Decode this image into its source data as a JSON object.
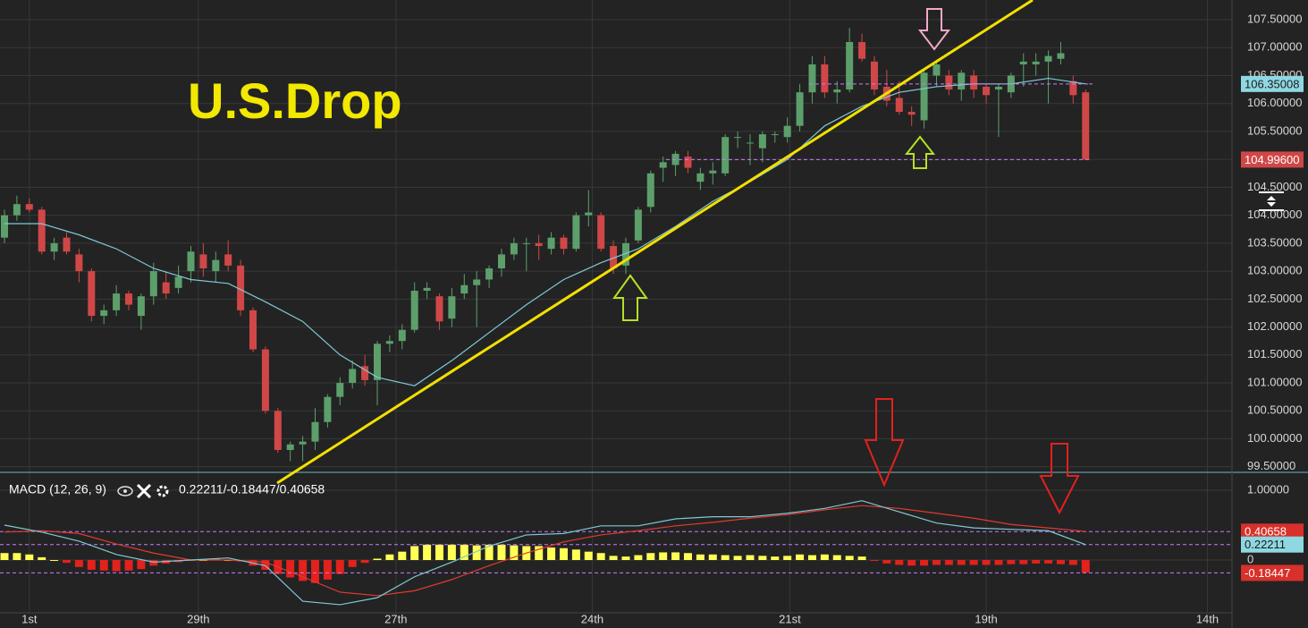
{
  "chart_data": {
    "type": "candlestick",
    "title": "U.S.Drop",
    "grid": true,
    "xlim": [
      -0.36,
      98.78
    ],
    "xticks": [
      {
        "value": 2,
        "label": "1st"
      },
      {
        "value": 15.6,
        "label": "29th"
      },
      {
        "value": 31.5,
        "label": "27th"
      },
      {
        "value": 47.3,
        "label": "24th"
      },
      {
        "value": 63.2,
        "label": "21st"
      },
      {
        "value": 79,
        "label": "19th"
      },
      {
        "value": 96.8,
        "label": "14th"
      }
    ],
    "price": {
      "ylim": [
        99.4,
        107.852
      ],
      "yticks": [
        {
          "value": 99.5,
          "label": "99.50000"
        },
        {
          "value": 100,
          "label": "100.00000"
        },
        {
          "value": 100.5,
          "label": "100.50000"
        },
        {
          "value": 101,
          "label": "101.00000"
        },
        {
          "value": 101.5,
          "label": "101.50000"
        },
        {
          "value": 102,
          "label": "102.00000"
        },
        {
          "value": 102.5,
          "label": "102.50000"
        },
        {
          "value": 103,
          "label": "103.00000"
        },
        {
          "value": 103.5,
          "label": "103.50000"
        },
        {
          "value": 104,
          "label": "104.00000"
        },
        {
          "value": 104.5,
          "label": "104.50000"
        },
        {
          "value": 105,
          "label": "105.00000"
        },
        {
          "value": 105.5,
          "label": "105.50000"
        },
        {
          "value": 106,
          "label": "106.00000"
        },
        {
          "value": 106.5,
          "label": "106.50000"
        },
        {
          "value": 107,
          "label": "107.00000"
        },
        {
          "value": 107.5,
          "label": "107.50000"
        }
      ],
      "up_color": "#5c9f6b",
      "down_color": "#d04747",
      "ohlc": [
        [
          103.6,
          104.1,
          103.5,
          104.0
        ],
        [
          104.0,
          104.35,
          103.9,
          104.2
        ],
        [
          104.2,
          104.3,
          104.05,
          104.1
        ],
        [
          104.1,
          104.15,
          103.3,
          103.35
        ],
        [
          103.35,
          103.6,
          103.2,
          103.5
        ],
        [
          103.6,
          103.7,
          103.3,
          103.35
        ],
        [
          103.3,
          103.4,
          102.8,
          103.0
        ],
        [
          103.0,
          103.05,
          102.1,
          102.2
        ],
        [
          102.2,
          102.4,
          102.05,
          102.3
        ],
        [
          102.3,
          102.75,
          102.2,
          102.6
        ],
        [
          102.6,
          102.65,
          102.3,
          102.4
        ],
        [
          102.2,
          102.6,
          101.95,
          102.55
        ],
        [
          102.55,
          103.15,
          102.4,
          103.0
        ],
        [
          102.8,
          103.0,
          102.5,
          102.6
        ],
        [
          102.7,
          103.1,
          102.6,
          102.9
        ],
        [
          103.0,
          103.45,
          102.8,
          103.35
        ],
        [
          103.3,
          103.5,
          102.9,
          103.05
        ],
        [
          103.0,
          103.35,
          102.8,
          103.2
        ],
        [
          103.3,
          103.55,
          103.0,
          103.1
        ],
        [
          103.1,
          103.2,
          102.2,
          102.3
        ],
        [
          102.3,
          102.35,
          101.55,
          101.6
        ],
        [
          101.6,
          101.65,
          100.45,
          100.5
        ],
        [
          100.5,
          100.55,
          99.75,
          99.8
        ],
        [
          99.8,
          99.95,
          99.6,
          99.9
        ],
        [
          99.9,
          100.05,
          99.6,
          99.95
        ],
        [
          99.95,
          100.55,
          99.8,
          100.3
        ],
        [
          100.3,
          100.8,
          100.2,
          100.75
        ],
        [
          100.75,
          101.1,
          100.6,
          101.0
        ],
        [
          101.0,
          101.4,
          100.9,
          101.25
        ],
        [
          101.3,
          101.5,
          100.95,
          101.05
        ],
        [
          101.05,
          101.75,
          100.6,
          101.7
        ],
        [
          101.7,
          101.85,
          101.55,
          101.75
        ],
        [
          101.75,
          102.05,
          101.6,
          101.95
        ],
        [
          101.95,
          102.8,
          101.9,
          102.65
        ],
        [
          102.65,
          102.8,
          102.5,
          102.7
        ],
        [
          102.55,
          102.6,
          101.95,
          102.1
        ],
        [
          102.15,
          102.7,
          102.0,
          102.55
        ],
        [
          102.6,
          102.95,
          102.5,
          102.75
        ],
        [
          102.75,
          103.0,
          102.0,
          102.85
        ],
        [
          102.85,
          103.1,
          102.7,
          103.05
        ],
        [
          103.05,
          103.4,
          102.9,
          103.3
        ],
        [
          103.3,
          103.6,
          103.2,
          103.5
        ],
        [
          103.5,
          103.6,
          103.0,
          103.5
        ],
        [
          103.5,
          103.65,
          103.2,
          103.45
        ],
        [
          103.4,
          103.7,
          103.3,
          103.6
        ],
        [
          103.6,
          103.65,
          103.3,
          103.4
        ],
        [
          103.4,
          104.05,
          103.35,
          104.0
        ],
        [
          104.0,
          104.45,
          103.8,
          104.05
        ],
        [
          104.0,
          104.05,
          103.35,
          103.4
        ],
        [
          103.45,
          103.55,
          102.95,
          103.05
        ],
        [
          103.1,
          103.6,
          102.95,
          103.5
        ],
        [
          103.55,
          104.15,
          103.5,
          104.1
        ],
        [
          104.15,
          104.8,
          104.05,
          104.75
        ],
        [
          104.85,
          105.05,
          104.6,
          104.95
        ],
        [
          104.9,
          105.15,
          104.7,
          105.1
        ],
        [
          105.05,
          105.15,
          104.75,
          104.85
        ],
        [
          104.6,
          104.85,
          104.45,
          104.75
        ],
        [
          104.75,
          104.95,
          104.55,
          104.8
        ],
        [
          104.75,
          105.45,
          104.7,
          105.4
        ],
        [
          105.4,
          105.5,
          105.2,
          105.4
        ],
        [
          105.3,
          105.45,
          104.9,
          105.3
        ],
        [
          105.2,
          105.5,
          104.95,
          105.45
        ],
        [
          105.45,
          105.5,
          105.3,
          105.45
        ],
        [
          105.4,
          105.75,
          105.3,
          105.6
        ],
        [
          105.6,
          106.35,
          105.5,
          106.2
        ],
        [
          106.2,
          106.85,
          106.0,
          106.7
        ],
        [
          106.7,
          106.85,
          106.1,
          106.2
        ],
        [
          106.2,
          106.4,
          106.0,
          106.25
        ],
        [
          106.25,
          107.35,
          106.2,
          107.1
        ],
        [
          107.1,
          107.25,
          106.75,
          106.8
        ],
        [
          106.75,
          106.85,
          106.15,
          106.25
        ],
        [
          106.3,
          106.6,
          105.95,
          106.05
        ],
        [
          106.1,
          106.4,
          105.8,
          105.85
        ],
        [
          105.85,
          105.95,
          105.6,
          105.8
        ],
        [
          105.7,
          106.6,
          105.55,
          106.55
        ],
        [
          106.5,
          106.75,
          106.3,
          106.7
        ],
        [
          106.5,
          106.6,
          106.15,
          106.25
        ],
        [
          106.25,
          106.6,
          106.05,
          106.55
        ],
        [
          106.5,
          106.6,
          106.1,
          106.25
        ],
        [
          106.3,
          106.35,
          106.0,
          106.15
        ],
        [
          106.25,
          106.35,
          105.4,
          106.3
        ],
        [
          106.2,
          106.55,
          106.1,
          106.5
        ],
        [
          106.7,
          106.9,
          106.3,
          106.75
        ],
        [
          106.7,
          106.9,
          106.5,
          106.75
        ],
        [
          106.75,
          106.95,
          106.0,
          106.85
        ],
        [
          106.8,
          107.1,
          106.7,
          106.9
        ],
        [
          106.4,
          106.5,
          106.0,
          106.15
        ],
        [
          106.2,
          106.25,
          104.996,
          104.996
        ]
      ],
      "moving_average": {
        "color": "#7fc9d6",
        "x": [
          0,
          3,
          6,
          9,
          12,
          15,
          18,
          21,
          24,
          27,
          30,
          33,
          36,
          39,
          42,
          45,
          48,
          51,
          54,
          57,
          60,
          63,
          66,
          69,
          72,
          75,
          78,
          81,
          84,
          87
        ],
        "values": [
          103.85,
          103.85,
          103.65,
          103.4,
          103.05,
          102.85,
          102.78,
          102.45,
          102.1,
          101.5,
          101.1,
          100.95,
          101.4,
          101.9,
          102.4,
          102.85,
          103.15,
          103.4,
          103.8,
          104.25,
          104.6,
          105.0,
          105.6,
          105.95,
          106.2,
          106.3,
          106.35,
          106.35,
          106.45,
          106.35
        ]
      },
      "markers": [
        {
          "value": 106.35008,
          "color": "#8fd8e2",
          "text_color": "#1a1a1a"
        },
        {
          "value": 104.996,
          "label": "104.99600",
          "color": "#d04747",
          "text_color": "#ffffff"
        }
      ]
    },
    "macd": {
      "label": "MACD (12, 26, 9)",
      "readout": "0.22211/-0.18447/0.40658",
      "ylim": [
        -0.756,
        1.231
      ],
      "yticks": [
        {
          "value": 1,
          "label": "1.00000"
        },
        0
      ],
      "macd_line": {
        "color": "#7fc9d6",
        "x": [
          0,
          3,
          6,
          9,
          12,
          15,
          18,
          21,
          24,
          27,
          30,
          33,
          36,
          39,
          42,
          45,
          48,
          51,
          54,
          57,
          60,
          63,
          66,
          69,
          72,
          75,
          78,
          81,
          84,
          87
        ],
        "values": [
          0.5,
          0.4,
          0.27,
          0.08,
          -0.03,
          0,
          0.03,
          -0.08,
          -0.59,
          -0.64,
          -0.54,
          -0.24,
          -0.03,
          0.2,
          0.36,
          0.38,
          0.49,
          0.49,
          0.59,
          0.62,
          0.62,
          0.67,
          0.74,
          0.85,
          0.69,
          0.53,
          0.46,
          0.44,
          0.42,
          0.22
        ]
      },
      "signal_line": {
        "color": "#e03a30",
        "x": [
          0,
          3,
          6,
          9,
          12,
          15,
          18,
          21,
          24,
          27,
          30,
          33,
          36,
          39,
          42,
          45,
          48,
          51,
          54,
          57,
          60,
          63,
          66,
          69,
          72,
          75,
          78,
          81,
          84,
          87
        ],
        "values": [
          0.4,
          0.42,
          0.38,
          0.23,
          0.1,
          0,
          0,
          -0.03,
          -0.24,
          -0.46,
          -0.51,
          -0.44,
          -0.28,
          -0.08,
          0.1,
          0.26,
          0.36,
          0.42,
          0.49,
          0.54,
          0.6,
          0.65,
          0.72,
          0.78,
          0.74,
          0.67,
          0.6,
          0.51,
          0.46,
          0.41
        ]
      },
      "histogram": {
        "up_color": "#ffff55",
        "down_color": "#e3211d",
        "values": [
          0.1,
          0.1,
          0.08,
          0.04,
          0.0,
          -0.04,
          -0.1,
          -0.14,
          -0.15,
          -0.16,
          -0.15,
          -0.13,
          -0.08,
          -0.05,
          -0.03,
          -0.01,
          0.0,
          0.01,
          0.0,
          -0.02,
          -0.08,
          -0.14,
          -0.2,
          -0.25,
          -0.3,
          -0.33,
          -0.28,
          -0.2,
          -0.1,
          -0.04,
          0.02,
          0.08,
          0.12,
          0.2,
          0.22,
          0.22,
          0.22,
          0.22,
          0.21,
          0.22,
          0.22,
          0.21,
          0.2,
          0.2,
          0.18,
          0.17,
          0.15,
          0.12,
          0.1,
          0.06,
          0.05,
          0.07,
          0.1,
          0.11,
          0.11,
          0.1,
          0.08,
          0.08,
          0.07,
          0.06,
          0.07,
          0.06,
          0.05,
          0.06,
          0.08,
          0.07,
          0.08,
          0.07,
          0.06,
          0.05,
          -0.01,
          -0.05,
          -0.07,
          -0.08,
          -0.08,
          -0.07,
          -0.07,
          -0.07,
          -0.07,
          -0.07,
          -0.07,
          -0.06,
          -0.06,
          -0.05,
          -0.05,
          -0.06,
          -0.07,
          -0.18
        ]
      },
      "markers": [
        {
          "value": 0.40658,
          "color": "#d8302a",
          "text_color": "#ffffff"
        },
        {
          "value": 0.22211,
          "color": "#8fd8e2",
          "text_color": "#1a1a1a"
        },
        {
          "value": -0.18447,
          "color": "#d8302a",
          "text_color": "#ffffff"
        }
      ]
    }
  }
}
